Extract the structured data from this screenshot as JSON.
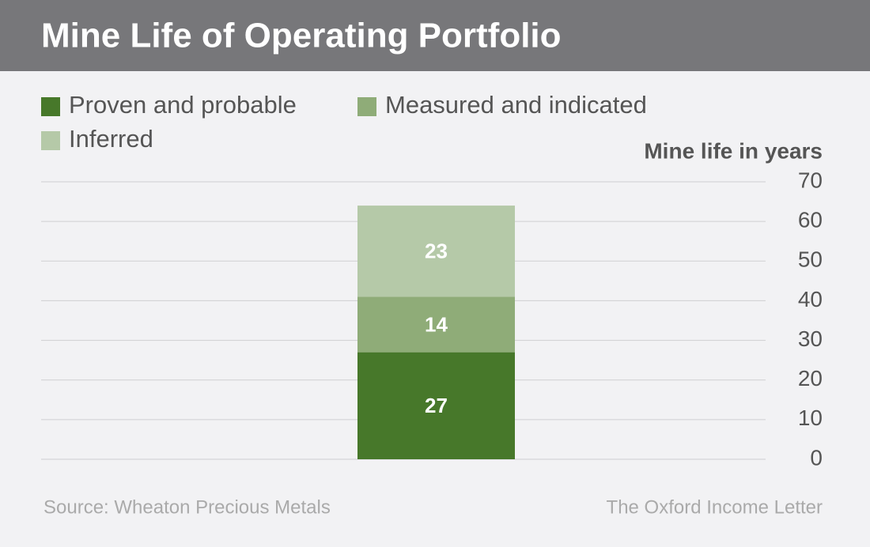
{
  "chart_data": {
    "type": "stacked-bar",
    "title": "Mine Life of Operating Portfolio",
    "y_axis_label": "Mine life in years",
    "source": "Source: Wheaton Precious Metals",
    "publisher": "The Oxford Income Letter",
    "categories": [
      null
    ],
    "series": [
      {
        "name": "Proven and probable",
        "color": "#47782a",
        "values": [
          27
        ]
      },
      {
        "name": "Measured and indicated",
        "color": "#8fac78",
        "values": [
          14
        ]
      },
      {
        "name": "Inferred",
        "color": "#b5c9a8",
        "values": [
          23
        ]
      }
    ],
    "ylim": [
      0,
      70
    ],
    "yticks": [
      0,
      10,
      20,
      30,
      40,
      50,
      60,
      70
    ],
    "grid": true
  }
}
